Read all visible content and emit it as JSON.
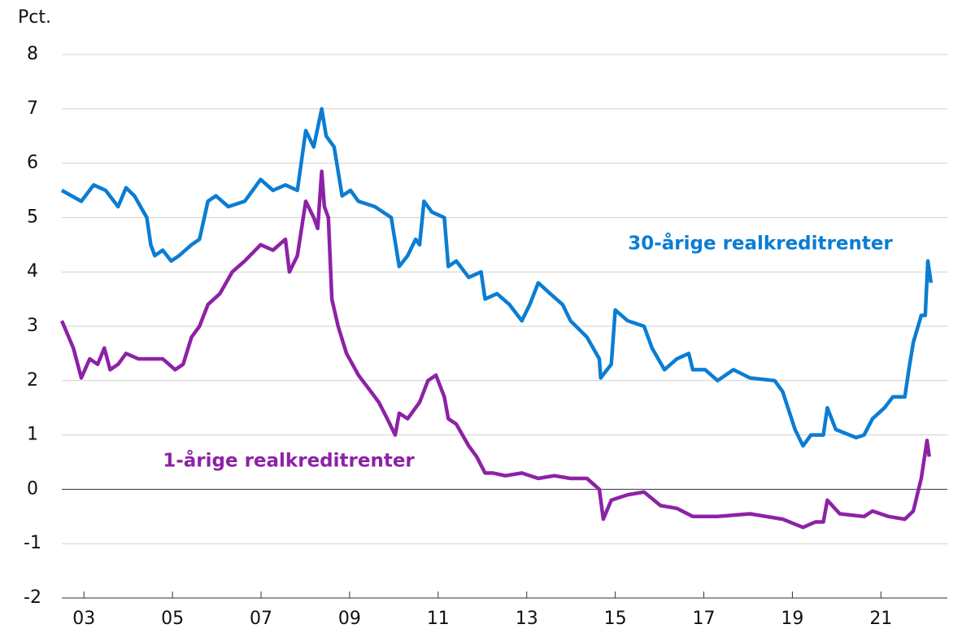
{
  "chart_data": {
    "type": "line",
    "ylabel": "Pct.",
    "annotations": [
      "30-årige realkreditrenter",
      "1-årige realkreditrenter"
    ],
    "xlim": [
      2003,
      2023
    ],
    "xticks": [
      {
        "value": 2003.5,
        "label": "03"
      },
      {
        "value": 2005.5,
        "label": "05"
      },
      {
        "value": 2007.5,
        "label": "07"
      },
      {
        "value": 2009.5,
        "label": "09"
      },
      {
        "value": 2011.5,
        "label": "11"
      },
      {
        "value": 2013.5,
        "label": "13"
      },
      {
        "value": 2015.5,
        "label": "15"
      },
      {
        "value": 2017.5,
        "label": "17"
      },
      {
        "value": 2019.5,
        "label": "19"
      },
      {
        "value": 2021.5,
        "label": "21"
      }
    ],
    "ylim": [
      -2,
      8
    ],
    "yticks": [
      -2,
      -1,
      0,
      1,
      2,
      3,
      4,
      5,
      6,
      7,
      8
    ],
    "grid": true,
    "series": [
      {
        "name": "30-årige realkreditrenter",
        "color": "#0b7dd3",
        "x": [
          2003.0,
          2003.44,
          2003.72,
          2003.99,
          2004.27,
          2004.45,
          2004.64,
          2004.92,
          2005.01,
          2005.1,
          2005.28,
          2005.47,
          2005.65,
          2005.93,
          2006.11,
          2006.3,
          2006.48,
          2006.76,
          2007.13,
          2007.49,
          2007.77,
          2008.05,
          2008.32,
          2008.51,
          2008.69,
          2008.87,
          2008.97,
          2009.15,
          2009.33,
          2009.52,
          2009.7,
          2010.07,
          2010.44,
          2010.62,
          2010.81,
          2010.99,
          2011.08,
          2011.18,
          2011.36,
          2011.64,
          2011.73,
          2011.91,
          2012.19,
          2012.47,
          2012.56,
          2012.83,
          2013.11,
          2013.39,
          2013.57,
          2013.76,
          2014.03,
          2014.31,
          2014.49,
          2014.86,
          2015.14,
          2015.17,
          2015.41,
          2015.5,
          2015.78,
          2016.15,
          2016.33,
          2016.61,
          2016.89,
          2017.16,
          2017.25,
          2017.53,
          2017.81,
          2018.17,
          2018.54,
          2019.1,
          2019.28,
          2019.56,
          2019.74,
          2019.92,
          2020.2,
          2020.29,
          2020.48,
          2020.94,
          2021.12,
          2021.31,
          2021.58,
          2021.77,
          2022.04,
          2022.13,
          2022.23,
          2022.41,
          2022.5,
          2022.56,
          2022.63
        ],
        "values": [
          5.5,
          5.3,
          5.6,
          5.5,
          5.2,
          5.55,
          5.4,
          5.0,
          4.5,
          4.3,
          4.4,
          4.2,
          4.3,
          4.5,
          4.6,
          5.3,
          5.4,
          5.2,
          5.3,
          5.7,
          5.5,
          5.6,
          5.5,
          6.6,
          6.3,
          7.0,
          6.5,
          6.3,
          5.4,
          5.5,
          5.3,
          5.2,
          5.0,
          4.1,
          4.3,
          4.6,
          4.5,
          5.3,
          5.1,
          5.0,
          4.1,
          4.2,
          3.9,
          4.0,
          3.5,
          3.6,
          3.4,
          3.1,
          3.4,
          3.8,
          3.6,
          3.4,
          3.1,
          2.8,
          2.4,
          2.05,
          2.3,
          3.3,
          3.1,
          3.0,
          2.6,
          2.2,
          2.4,
          2.5,
          2.2,
          2.2,
          2.0,
          2.2,
          2.05,
          2.0,
          1.8,
          1.1,
          0.8,
          1.0,
          1.0,
          1.5,
          1.1,
          0.95,
          1.0,
          1.3,
          1.5,
          1.7,
          1.7,
          2.2,
          2.7,
          3.2,
          3.2,
          4.2,
          3.8
        ]
      },
      {
        "name": "1-årige realkreditrenter",
        "color": "#8d22a6",
        "x": [
          2003.0,
          2003.26,
          2003.44,
          2003.63,
          2003.81,
          2003.96,
          2004.09,
          2004.27,
          2004.45,
          2004.73,
          2005.28,
          2005.56,
          2005.74,
          2005.93,
          2006.11,
          2006.3,
          2006.57,
          2006.85,
          2007.13,
          2007.49,
          2007.77,
          2008.05,
          2008.14,
          2008.32,
          2008.51,
          2008.69,
          2008.78,
          2008.87,
          2008.93,
          2009.02,
          2009.1,
          2009.24,
          2009.43,
          2009.7,
          2009.98,
          2010.16,
          2010.35,
          2010.53,
          2010.62,
          2010.81,
          2011.08,
          2011.27,
          2011.45,
          2011.64,
          2011.73,
          2011.91,
          2012.19,
          2012.37,
          2012.56,
          2012.74,
          2013.02,
          2013.39,
          2013.76,
          2014.12,
          2014.49,
          2014.86,
          2015.14,
          2015.23,
          2015.41,
          2015.78,
          2016.15,
          2016.52,
          2016.89,
          2017.25,
          2017.81,
          2018.54,
          2019.28,
          2019.74,
          2020.02,
          2020.2,
          2020.29,
          2020.57,
          2021.12,
          2021.31,
          2021.67,
          2022.04,
          2022.23,
          2022.41,
          2022.54,
          2022.59
        ],
        "values": [
          3.1,
          2.6,
          2.05,
          2.4,
          2.3,
          2.6,
          2.2,
          2.3,
          2.5,
          2.4,
          2.4,
          2.2,
          2.3,
          2.8,
          3.0,
          3.4,
          3.6,
          4.0,
          4.2,
          4.5,
          4.4,
          4.6,
          4.0,
          4.3,
          5.3,
          5.0,
          4.8,
          5.85,
          5.2,
          5.0,
          3.5,
          3.0,
          2.5,
          2.1,
          1.8,
          1.6,
          1.3,
          1.0,
          1.4,
          1.3,
          1.6,
          2.0,
          2.1,
          1.7,
          1.3,
          1.2,
          0.8,
          0.6,
          0.3,
          0.3,
          0.25,
          0.3,
          0.2,
          0.25,
          0.2,
          0.2,
          0.0,
          -0.55,
          -0.2,
          -0.1,
          -0.05,
          -0.3,
          -0.35,
          -0.5,
          -0.5,
          -0.45,
          -0.55,
          -0.7,
          -0.6,
          -0.6,
          -0.2,
          -0.45,
          -0.5,
          -0.4,
          -0.5,
          -0.55,
          -0.4,
          0.2,
          0.9,
          0.6
        ]
      }
    ]
  }
}
